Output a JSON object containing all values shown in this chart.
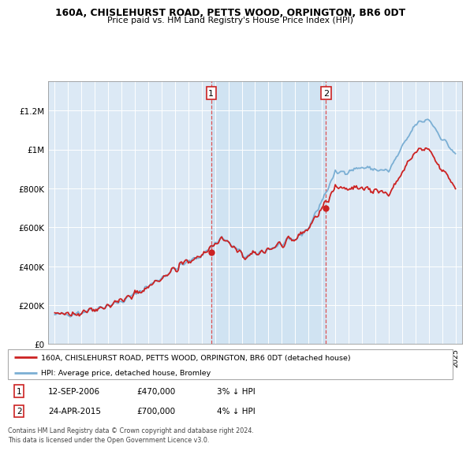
{
  "title": "160A, CHISLEHURST ROAD, PETTS WOOD, ORPINGTON, BR6 0DT",
  "subtitle": "Price paid vs. HM Land Registry's House Price Index (HPI)",
  "ylabel_ticks": [
    "£0",
    "£200K",
    "£400K",
    "£600K",
    "£800K",
    "£1M",
    "£1.2M"
  ],
  "ytick_values": [
    0,
    200000,
    400000,
    600000,
    800000,
    1000000,
    1200000
  ],
  "ylim": [
    0,
    1350000
  ],
  "xlim_start": 1994.5,
  "xlim_end": 2025.5,
  "background_color": "#dce9f5",
  "shade_color": "#d0e4f7",
  "line_color_hpi": "#7bafd4",
  "line_color_price": "#cc2222",
  "marker_color": "#cc2222",
  "purchase1_x": 2006.71,
  "purchase1_y": 470000,
  "purchase2_x": 2015.31,
  "purchase2_y": 700000,
  "purchase1_label": "1",
  "purchase2_label": "2",
  "legend_line1": "160A, CHISLEHURST ROAD, PETTS WOOD, ORPINGTON, BR6 0DT (detached house)",
  "legend_line2": "HPI: Average price, detached house, Bromley",
  "table_row1_num": "1",
  "table_row1_date": "12-SEP-2006",
  "table_row1_price": "£470,000",
  "table_row1_note": "3% ↓ HPI",
  "table_row2_num": "2",
  "table_row2_date": "24-APR-2015",
  "table_row2_price": "£700,000",
  "table_row2_note": "4% ↓ HPI",
  "footer": "Contains HM Land Registry data © Crown copyright and database right 2024.\nThis data is licensed under the Open Government Licence v3.0."
}
